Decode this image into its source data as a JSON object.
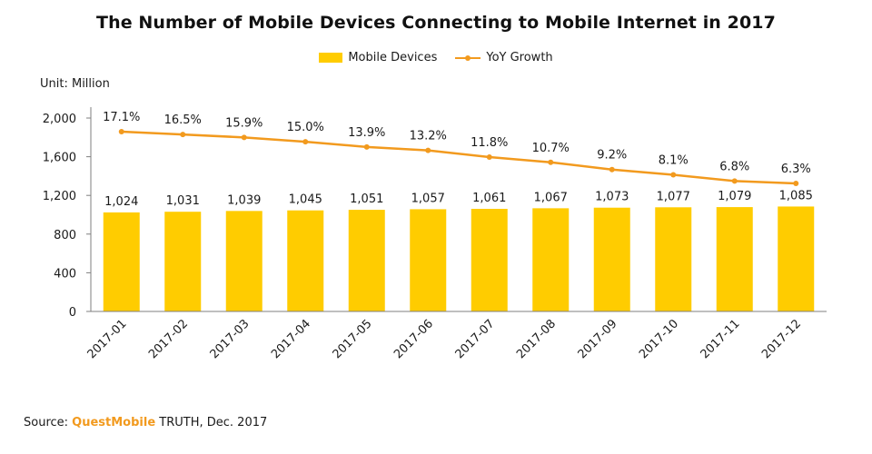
{
  "chart_data": {
    "type": "bar",
    "title": "The Number of Mobile Devices Connecting to Mobile Internet in 2017",
    "unit_label": "Unit: Million",
    "categories": [
      "2017-01",
      "2017-02",
      "2017-03",
      "2017-04",
      "2017-05",
      "2017-06",
      "2017-07",
      "2017-08",
      "2017-09",
      "2017-10",
      "2017-11",
      "2017-12"
    ],
    "series": [
      {
        "name": "Mobile Devices",
        "type": "bar",
        "values": [
          1024,
          1031,
          1039,
          1045,
          1051,
          1057,
          1061,
          1067,
          1073,
          1077,
          1079,
          1085
        ],
        "labels": [
          "1,024",
          "1,031",
          "1,039",
          "1,045",
          "1,051",
          "1,057",
          "1,061",
          "1,067",
          "1,073",
          "1,077",
          "1,079",
          "1,085"
        ]
      },
      {
        "name": "YoY Growth",
        "type": "line",
        "values": [
          17.1,
          16.5,
          15.9,
          15.0,
          13.9,
          13.2,
          11.8,
          10.7,
          9.2,
          8.1,
          6.8,
          6.3
        ],
        "labels": [
          "17.1%",
          "16.5%",
          "15.9%",
          "15.0%",
          "13.9%",
          "13.2%",
          "11.8%",
          "10.7%",
          "9.2%",
          "8.1%",
          "6.8%",
          "6.3%"
        ]
      }
    ],
    "y_axis": {
      "range": [
        0,
        2000
      ],
      "ticks": [
        0,
        400,
        800,
        1200,
        1600,
        2000
      ],
      "tick_labels": [
        "0",
        "400",
        "800",
        "1,200",
        "1,600",
        "2,000"
      ]
    },
    "secondary_axis_hidden": true,
    "grid": false,
    "legend_position": "top-center",
    "x_tick_rotation": "rotated -45 degrees",
    "colors": {
      "bar": "#FFCC00",
      "line": "#F29A1E",
      "axis": "#7f7f7f",
      "text": "#1a1a1a"
    }
  },
  "source": {
    "prefix": "Source: ",
    "brand": "QuestMobile",
    "suffix": " TRUTH, Dec. 2017",
    "brand_color": "#F29A1E"
  }
}
